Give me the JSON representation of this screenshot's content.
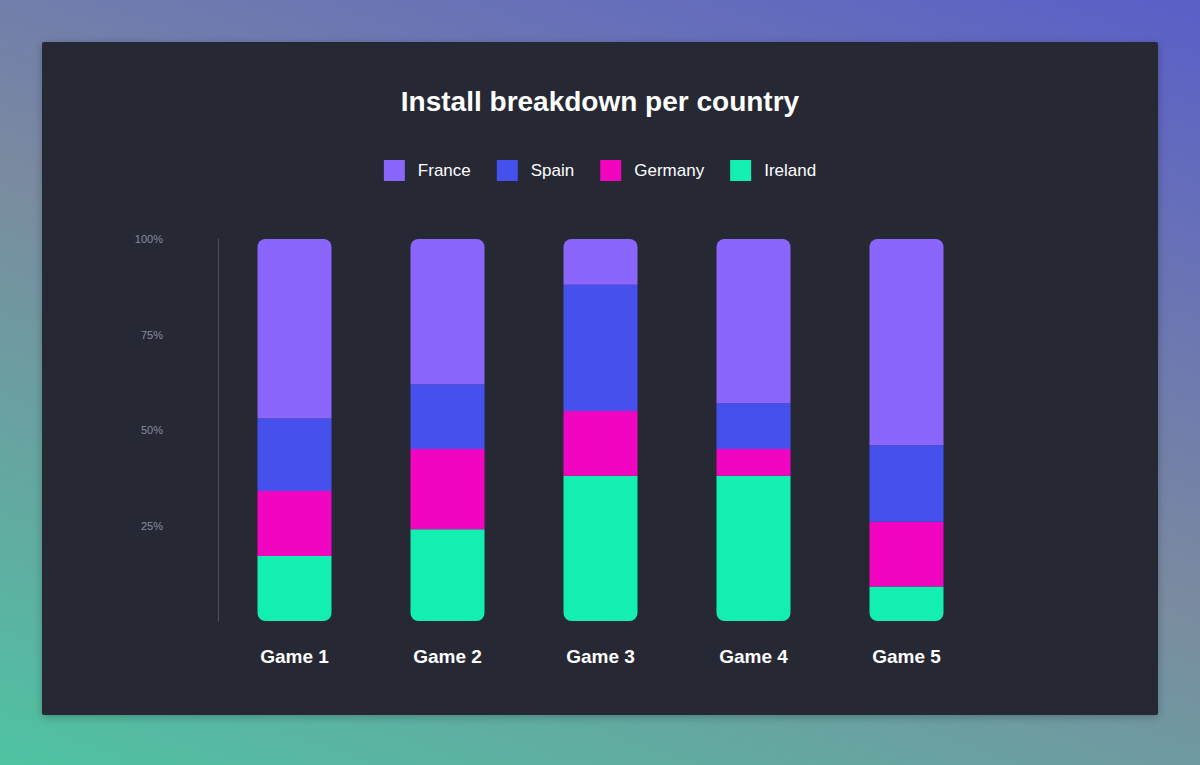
{
  "chart_data": {
    "type": "bar",
    "title": "Install breakdown per country",
    "categories": [
      "Game 1",
      "Game 2",
      "Game 3",
      "Game 4",
      "Game 5"
    ],
    "series": [
      {
        "name": "France",
        "color": "#8b66fd",
        "values": [
          47,
          38,
          12,
          43,
          54
        ]
      },
      {
        "name": "Spain",
        "color": "#4650ed",
        "values": [
          19,
          17,
          33,
          12,
          20
        ]
      },
      {
        "name": "Germany",
        "color": "#f205c1",
        "values": [
          17,
          21,
          17,
          7,
          17
        ]
      },
      {
        "name": "Ireland",
        "color": "#13efb0",
        "values": [
          17,
          24,
          38,
          38,
          9
        ]
      }
    ],
    "ylim": [
      0,
      100
    ],
    "yticks": [
      {
        "value": 25,
        "label": "25%"
      },
      {
        "value": 50,
        "label": "50%"
      },
      {
        "value": 75,
        "label": "75%"
      },
      {
        "value": 100,
        "label": "100%"
      }
    ],
    "stacked": true,
    "grid": false,
    "legend": "top"
  }
}
